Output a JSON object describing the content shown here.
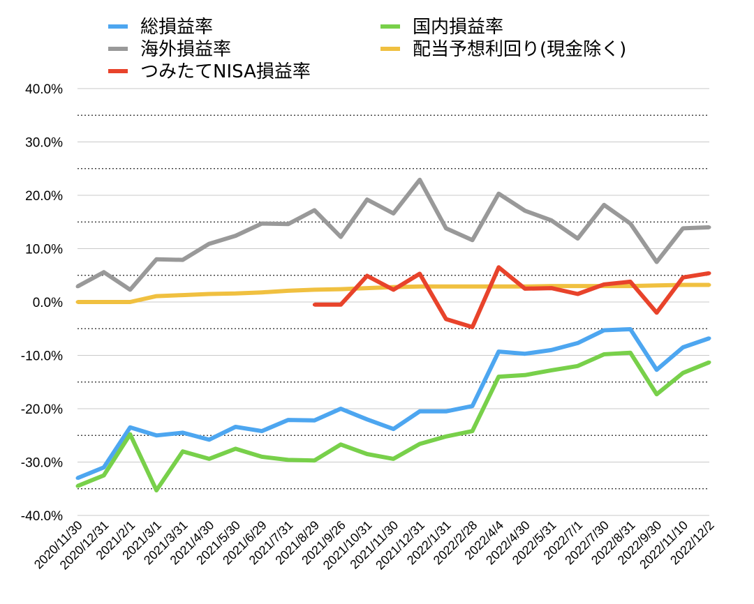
{
  "chart_data": {
    "type": "line",
    "title": "",
    "xlabel": "",
    "ylabel": "",
    "ylim": [
      -40,
      40
    ],
    "yticks": [
      "40.0%",
      "30.0%",
      "20.0%",
      "10.0%",
      "0.0%",
      "-10.0%",
      "-20.0%",
      "-30.0%",
      "-40.0%"
    ],
    "grid": "solid major lines at 10%, dotted minor lines at 5% offsets",
    "legend_position": "top",
    "categories": [
      "2020/11/30",
      "2020/12/31",
      "2021/2/1",
      "2021/3/1",
      "2021/3/31",
      "2021/4/30",
      "2021/5/30",
      "2021/6/29",
      "2021/7/31",
      "2021/8/29",
      "2021/9/26",
      "2021/10/31",
      "2021/11/30",
      "2021/12/31",
      "2022/1/31",
      "2022/2/28",
      "2022/4/4",
      "2022/4/30",
      "2022/5/31",
      "2022/7/1",
      "2022/7/30",
      "2022/8/31",
      "2022/9/30",
      "2022/11/10",
      "2022/12/2"
    ],
    "series": [
      {
        "name": "総損益率",
        "color": "#4da6f0",
        "values": [
          -33.0,
          -31.0,
          -23.5,
          -25.0,
          -24.5,
          -25.8,
          -23.4,
          -24.2,
          -22.1,
          -22.2,
          -20.0,
          -22.0,
          -23.8,
          -20.5,
          -20.5,
          -19.5,
          -9.3,
          -9.7,
          -9.0,
          -7.7,
          -5.3,
          -5.1,
          -12.7,
          -8.5,
          -6.8
        ]
      },
      {
        "name": "国内損益率",
        "color": "#78d04a",
        "values": [
          -34.5,
          -32.5,
          -24.8,
          -35.3,
          -28.0,
          -29.4,
          -27.5,
          -29.0,
          -29.6,
          -29.7,
          -26.7,
          -28.5,
          -29.4,
          -26.6,
          -25.2,
          -24.2,
          -14.0,
          -13.7,
          -12.8,
          -12.0,
          -9.8,
          -9.5,
          -17.3,
          -13.3,
          -11.3
        ]
      },
      {
        "name": "海外損益率",
        "color": "#999999",
        "values": [
          2.9,
          5.6,
          2.3,
          8.0,
          7.9,
          10.9,
          12.4,
          14.7,
          14.6,
          17.2,
          12.2,
          19.2,
          16.6,
          22.9,
          13.8,
          11.6,
          20.3,
          17.1,
          15.3,
          11.9,
          18.2,
          14.7,
          7.5,
          13.8,
          14.0
        ]
      },
      {
        "name": "配当予想利回り(現金除く)",
        "color": "#f0c040",
        "values": [
          0.0,
          0.0,
          0.0,
          1.1,
          1.3,
          1.5,
          1.6,
          1.8,
          2.1,
          2.3,
          2.4,
          2.6,
          2.8,
          2.9,
          2.9,
          2.9,
          2.9,
          2.9,
          3.0,
          3.0,
          3.0,
          3.0,
          3.1,
          3.2,
          3.2
        ]
      },
      {
        "name": "つみたてNISA損益率",
        "color": "#e8432b",
        "values": [
          null,
          null,
          null,
          null,
          null,
          null,
          null,
          null,
          null,
          -0.5,
          -0.5,
          4.9,
          2.3,
          5.3,
          -3.2,
          -4.7,
          6.5,
          2.5,
          2.6,
          1.5,
          3.3,
          3.8,
          -2.0,
          4.6,
          5.4
        ]
      }
    ]
  },
  "legend": {
    "items": [
      {
        "label": "総損益率",
        "color": "#4da6f0"
      },
      {
        "label": "国内損益率",
        "color": "#78d04a"
      },
      {
        "label": "海外損益率",
        "color": "#999999"
      },
      {
        "label": "配当予想利回り(現金除く)",
        "color": "#f0c040"
      },
      {
        "label": "つみたてNISA損益率",
        "color": "#e8432b"
      }
    ]
  }
}
